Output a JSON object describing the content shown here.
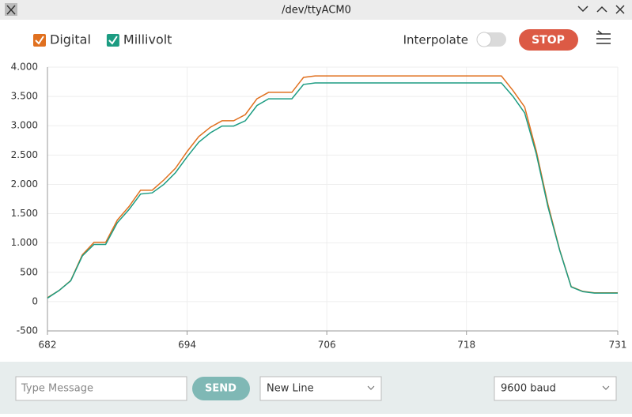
{
  "window": {
    "title": "/dev/ttyACM0"
  },
  "controls": {
    "interpolate": "Interpolate",
    "stop": "STOP"
  },
  "chart_data": {
    "type": "line",
    "x": [
      682,
      683,
      684,
      685,
      686,
      687,
      688,
      689,
      690,
      691,
      692,
      693,
      694,
      695,
      696,
      697,
      698,
      699,
      700,
      701,
      702,
      703,
      704,
      705,
      706,
      707,
      708,
      709,
      710,
      711,
      712,
      713,
      714,
      715,
      716,
      717,
      718,
      719,
      720,
      721,
      722,
      723,
      724,
      725,
      726,
      727,
      728,
      729,
      730,
      731
    ],
    "series": [
      {
        "name": "Digital",
        "color": "#e0701f",
        "values": [
          67,
          190,
          360,
          800,
          1010,
          1010,
          1390,
          1620,
          1900,
          1900,
          2075,
          2275,
          2560,
          2815,
          2975,
          3085,
          3085,
          3190,
          3460,
          3570,
          3570,
          3570,
          3825,
          3850,
          3850,
          3850,
          3850,
          3850,
          3850,
          3850,
          3850,
          3850,
          3850,
          3850,
          3850,
          3850,
          3850,
          3850,
          3850,
          3850,
          3600,
          3320,
          2570,
          1660,
          890,
          255,
          175,
          150,
          150,
          150
        ]
      },
      {
        "name": "Millivolt",
        "color": "#1c9c82",
        "values": [
          60,
          190,
          355,
          780,
          975,
          975,
          1345,
          1570,
          1835,
          1855,
          2000,
          2200,
          2470,
          2720,
          2880,
          2995,
          2995,
          3085,
          3345,
          3460,
          3460,
          3460,
          3705,
          3730,
          3730,
          3730,
          3730,
          3730,
          3730,
          3730,
          3730,
          3730,
          3730,
          3730,
          3730,
          3730,
          3730,
          3730,
          3730,
          3730,
          3500,
          3220,
          2520,
          1620,
          880,
          250,
          170,
          145,
          145,
          145
        ]
      }
    ],
    "xlim": [
      682,
      731
    ],
    "xticks": [
      682,
      694,
      706,
      718,
      731
    ],
    "ylim": [
      -500,
      4000
    ],
    "yticks": [
      {
        "value": 4000,
        "label": "4.000"
      },
      {
        "value": 3500,
        "label": "3.500"
      },
      {
        "value": 3000,
        "label": "3.000"
      },
      {
        "value": 2500,
        "label": "2.500"
      },
      {
        "value": 2000,
        "label": "2.000"
      },
      {
        "value": 1500,
        "label": "1.500"
      },
      {
        "value": 1000,
        "label": "1.000"
      },
      500,
      0,
      -500
    ],
    "grid": true
  },
  "footer": {
    "placeholder": "Type Message",
    "send": "SEND",
    "line_ending": "New Line",
    "baud": "9600 baud"
  }
}
